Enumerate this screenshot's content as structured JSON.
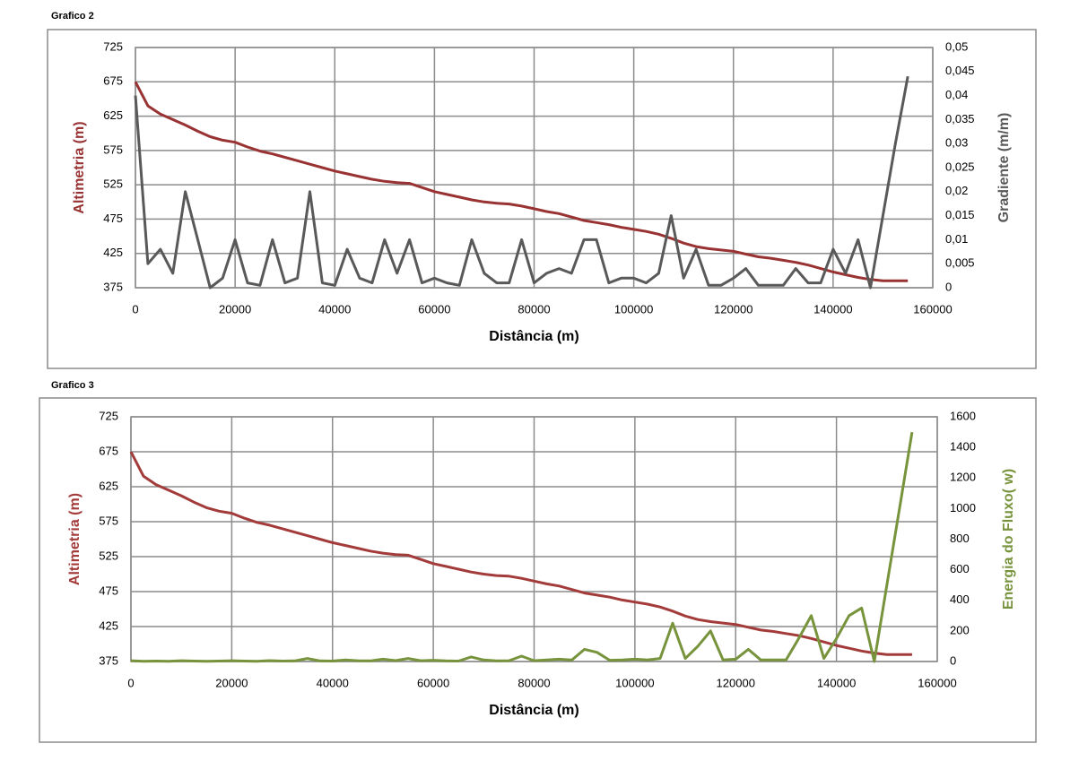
{
  "chart_data": [
    {
      "type": "line",
      "title": "Grafico 2",
      "xlabel": "Distância (m)",
      "ylabel": "Altimetria (m)",
      "y2label": "Gradiente (m/m)",
      "x": [
        0,
        2500,
        5000,
        7500,
        10000,
        12500,
        15000,
        17500,
        20000,
        22500,
        25000,
        27500,
        30000,
        32500,
        35000,
        37500,
        40000,
        42500,
        45000,
        47500,
        50000,
        52500,
        55000,
        57500,
        60000,
        62500,
        65000,
        67500,
        70000,
        72500,
        75000,
        77500,
        80000,
        82500,
        85000,
        87500,
        90000,
        92500,
        95000,
        97500,
        100000,
        102500,
        105000,
        107500,
        110000,
        112500,
        115000,
        117500,
        120000,
        122500,
        125000,
        127500,
        130000,
        132500,
        135000,
        137500,
        140000,
        142500,
        145000,
        147500,
        150000,
        152500,
        155000
      ],
      "xlim": [
        0,
        160000
      ],
      "xticks": [
        0,
        20000,
        40000,
        60000,
        80000,
        100000,
        120000,
        140000,
        160000
      ],
      "ylim": [
        375,
        725
      ],
      "yticks": [
        375,
        425,
        475,
        525,
        575,
        625,
        675,
        725
      ],
      "y2lim": [
        0,
        0.05
      ],
      "y2ticks": [
        0,
        {
          "value": 0.005,
          "label": "0,005"
        },
        {
          "value": 0.01,
          "label": "0,01"
        },
        {
          "value": 0.015,
          "label": "0,015"
        },
        {
          "value": 0.02,
          "label": "0,02"
        },
        {
          "value": 0.025,
          "label": "0,025"
        },
        {
          "value": 0.03,
          "label": "0,03"
        },
        {
          "value": 0.035,
          "label": "0,035"
        },
        {
          "value": 0.04,
          "label": "0,04"
        },
        {
          "value": 0.045,
          "label": "0,045"
        },
        {
          "value": 0.05,
          "label": "0,05"
        }
      ],
      "grid": true,
      "series": [
        {
          "name": "Altimetria",
          "color": "#993333",
          "values": [
            675,
            640,
            628,
            620,
            612,
            603,
            595,
            590,
            587,
            580,
            574,
            570,
            565,
            560,
            555,
            550,
            545,
            541,
            537,
            533,
            530,
            528,
            527,
            521,
            515,
            511,
            507,
            503,
            500,
            498,
            497,
            494,
            490,
            486,
            483,
            478,
            473,
            470,
            467,
            463,
            460,
            457,
            453,
            447,
            440,
            435,
            432,
            430,
            428,
            424,
            420,
            418,
            415,
            412,
            408,
            403,
            398,
            394,
            390,
            387,
            385,
            385,
            385
          ]
        },
        {
          "name": "Gradiente",
          "color": "#595959",
          "axis": "y2",
          "values": [
            0.04,
            0.005,
            0.008,
            0.003,
            0.02,
            0.01,
            0,
            0.002,
            0.01,
            0.001,
            0.0005,
            0.01,
            0.001,
            0.002,
            0.02,
            0.001,
            0.0005,
            0.008,
            0.002,
            0.001,
            0.01,
            0.003,
            0.01,
            0.001,
            0.002,
            0.001,
            0.0005,
            0.01,
            0.003,
            0.001,
            0.001,
            0.01,
            0.001,
            0.003,
            0.004,
            0.003,
            0.01,
            0.01,
            0.001,
            0.002,
            0.002,
            0.001,
            0.003,
            0.015,
            0.002,
            0.008,
            0.0005,
            0.0005,
            0.002,
            0.004,
            0.0005,
            0.0005,
            0.0005,
            0.004,
            0.001,
            0.001,
            0.008,
            0.003,
            0.01,
            0,
            0.015,
            0.03,
            0.044
          ]
        }
      ]
    },
    {
      "type": "line",
      "title": "Grafico 3",
      "xlabel": "Distância (m)",
      "ylabel": "Altimetria (m)",
      "y2label": "Energia do Fluxo( w)",
      "x": [
        0,
        2500,
        5000,
        7500,
        10000,
        12500,
        15000,
        17500,
        20000,
        22500,
        25000,
        27500,
        30000,
        32500,
        35000,
        37500,
        40000,
        42500,
        45000,
        47500,
        50000,
        52500,
        55000,
        57500,
        60000,
        62500,
        65000,
        67500,
        70000,
        72500,
        75000,
        77500,
        80000,
        82500,
        85000,
        87500,
        90000,
        92500,
        95000,
        97500,
        100000,
        102500,
        105000,
        107500,
        110000,
        112500,
        115000,
        117500,
        120000,
        122500,
        125000,
        127500,
        130000,
        132500,
        135000,
        137500,
        140000,
        142500,
        145000,
        147500,
        150000,
        152500,
        155000
      ],
      "xlim": [
        0,
        160000
      ],
      "xticks": [
        0,
        20000,
        40000,
        60000,
        80000,
        100000,
        120000,
        140000,
        160000
      ],
      "ylim": [
        375,
        725
      ],
      "yticks": [
        375,
        425,
        475,
        525,
        575,
        625,
        675,
        725
      ],
      "y2lim": [
        0,
        1600
      ],
      "y2ticks": [
        0,
        200,
        400,
        600,
        800,
        1000,
        1200,
        1400,
        1600
      ],
      "grid": true,
      "series": [
        {
          "name": "Altimetria",
          "color": "#a33b3b",
          "values": [
            675,
            640,
            628,
            620,
            612,
            603,
            595,
            590,
            587,
            580,
            574,
            570,
            565,
            560,
            555,
            550,
            545,
            541,
            537,
            533,
            530,
            528,
            527,
            521,
            515,
            511,
            507,
            503,
            500,
            498,
            497,
            494,
            490,
            486,
            483,
            478,
            473,
            470,
            467,
            463,
            460,
            457,
            453,
            447,
            440,
            435,
            432,
            430,
            428,
            424,
            420,
            418,
            415,
            412,
            408,
            403,
            398,
            394,
            390,
            387,
            385,
            385,
            385
          ]
        },
        {
          "name": "Energia do Fluxo",
          "color": "#77933c",
          "axis": "y2",
          "values": [
            5,
            2,
            3,
            2,
            5,
            3,
            2,
            3,
            5,
            3,
            2,
            6,
            3,
            4,
            20,
            4,
            3,
            10,
            5,
            4,
            15,
            6,
            20,
            5,
            8,
            4,
            3,
            30,
            10,
            4,
            5,
            35,
            5,
            10,
            15,
            10,
            80,
            60,
            8,
            10,
            15,
            10,
            20,
            250,
            20,
            100,
            200,
            10,
            15,
            80,
            10,
            10,
            10,
            150,
            300,
            20,
            150,
            300,
            350,
            0,
            500,
            1000,
            1500
          ]
        }
      ]
    }
  ]
}
